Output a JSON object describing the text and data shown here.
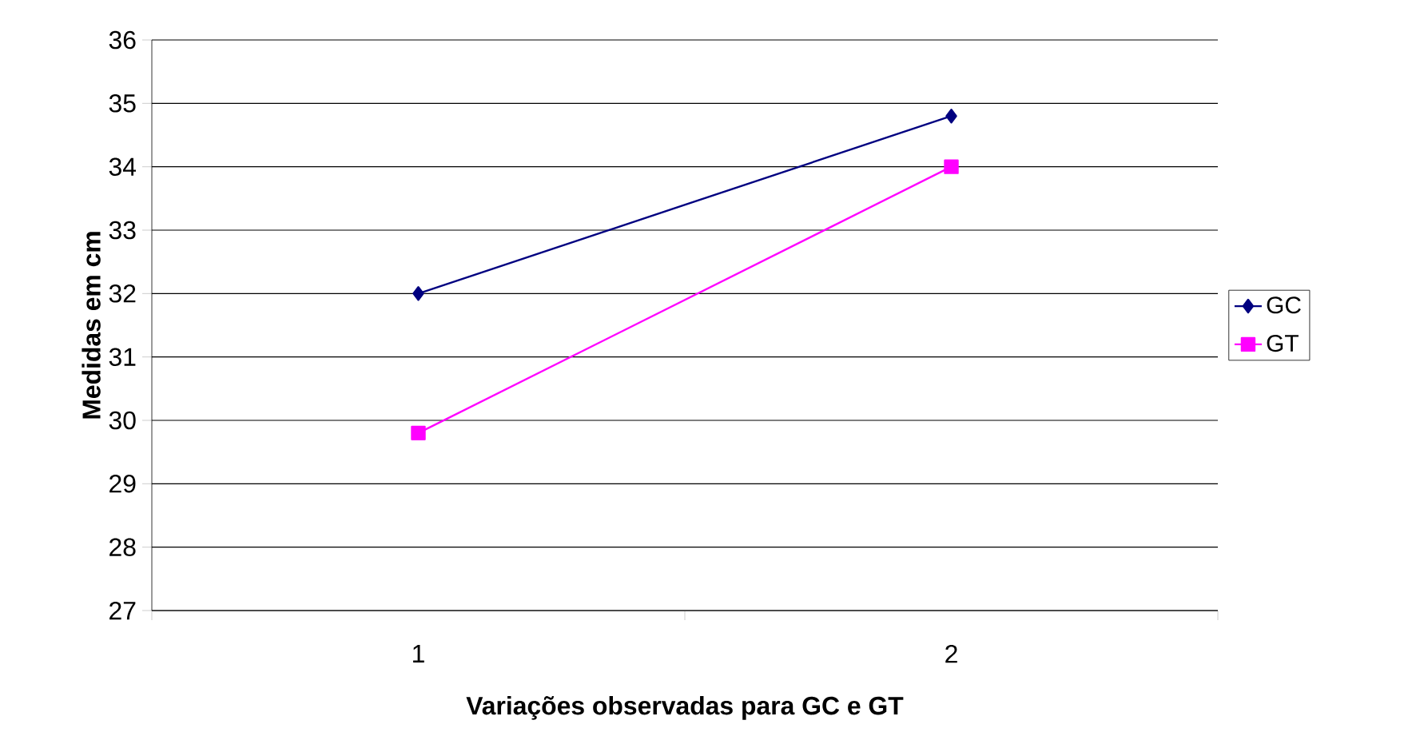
{
  "chart_data": {
    "type": "line",
    "xlabel": "Variações observadas para GC e GT",
    "ylabel": "Medidas em cm",
    "categories": [
      "1",
      "2"
    ],
    "series": [
      {
        "name": "GC",
        "color": "#000080",
        "values": [
          32,
          34.8
        ],
        "marker": "diamond"
      },
      {
        "name": "GT",
        "color": "#ff00ff",
        "values": [
          29.8,
          34.0
        ],
        "marker": "square"
      }
    ],
    "ylim": [
      27,
      36
    ],
    "yticks": [
      27,
      28,
      29,
      30,
      31,
      32,
      33,
      34,
      35,
      36
    ],
    "grid": "y",
    "legend": "right",
    "line_style": "solid"
  }
}
